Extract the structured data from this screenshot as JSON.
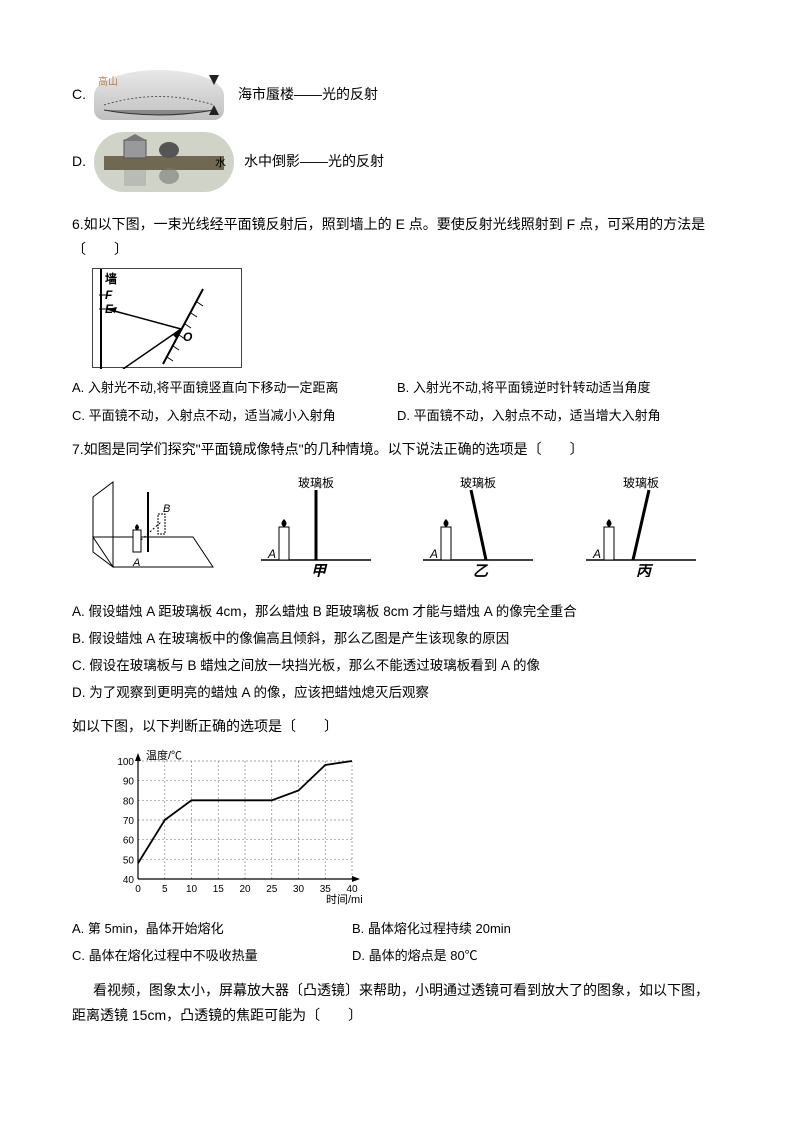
{
  "q5": {
    "optionC": {
      "label": "C.",
      "imgLabel": "高山",
      "text": "海市蜃楼——光的反射"
    },
    "optionD": {
      "label": "D.",
      "waterLabel": "水",
      "text": "水中倒影——光的反射"
    }
  },
  "q6": {
    "text": "6.如以下图，一束光线经平面镜反射后，照到墙上的 E 点。要使反射光线照射到 F 点，可采用的方法是〔　　〕",
    "diagram": {
      "wall": "墙",
      "F": "F",
      "E": "E",
      "O": "O"
    },
    "optA": "A. 入射光不动,将平面镜竖直向下移动一定距离",
    "optB": "B. 入射光不动,将平面镜逆时针转动适当角度",
    "optC": "C. 平面镜不动，入射点不动，适当减小入射角",
    "optD": "D. 平面镜不动，入射点不动，适当增大入射角"
  },
  "q7": {
    "text": "7.如图是同学们探究\"平面镜成像特点\"的几种情境。以下说法正确的选项是〔　　〕",
    "glassLabel": "玻璃板",
    "candleA": "A",
    "candleB": "B",
    "panel1": "甲",
    "panel2": "乙",
    "panel3": "丙",
    "optA": "A. 假设蜡烛 A 距玻璃板 4cm，那么蜡烛 B 距玻璃板 8cm 才能与蜡烛 A 的像完全重合",
    "optB": "B. 假设蜡烛 A 在玻璃板中的像偏高且倾斜，那么乙图是产生该现象的原因",
    "optC": "C. 假设在玻璃板与 B 蜡烛之间放一块挡光板，那么不能透过玻璃板看到 A 的像",
    "optD": "D. 为了观察到更明亮的蜡烛 A 的像，应该把蜡烛熄灭后观察"
  },
  "q8": {
    "text": "如以下图，以下判断正确的选项是〔　　〕",
    "graph": {
      "ylabel": "温度/℃",
      "xlabel": "时间/min",
      "ymin": 40,
      "ymax": 100,
      "ystep": 10,
      "yticks": [
        40,
        50,
        60,
        70,
        80,
        90,
        100
      ],
      "xmin": 0,
      "xmax": 40,
      "xstep": 5,
      "xticks": [
        0,
        5,
        10,
        15,
        20,
        25,
        30,
        35,
        40
      ],
      "points": [
        [
          0,
          48
        ],
        [
          5,
          70
        ],
        [
          10,
          80
        ],
        [
          15,
          80
        ],
        [
          20,
          80
        ],
        [
          25,
          80
        ],
        [
          30,
          85
        ],
        [
          35,
          98
        ],
        [
          40,
          100
        ]
      ],
      "line_color": "#000000",
      "grid_color": "#888888",
      "bg_color": "#ffffff",
      "plateau_temp": 80
    },
    "optA": "A. 第 5min，晶体开始熔化",
    "optB": "B. 晶体熔化过程持续 20min",
    "optC": "C. 晶体在熔化过程中不吸收热量",
    "optD": "D. 晶体的熔点是 80℃"
  },
  "q9": {
    "text": "看视频，图象太小，屏幕放大器〔凸透镜〕来帮助，小明通过透镜可看到放大了的图象，如以下图，距离透镜 15cm，凸透镜的焦距可能为〔　　〕"
  }
}
